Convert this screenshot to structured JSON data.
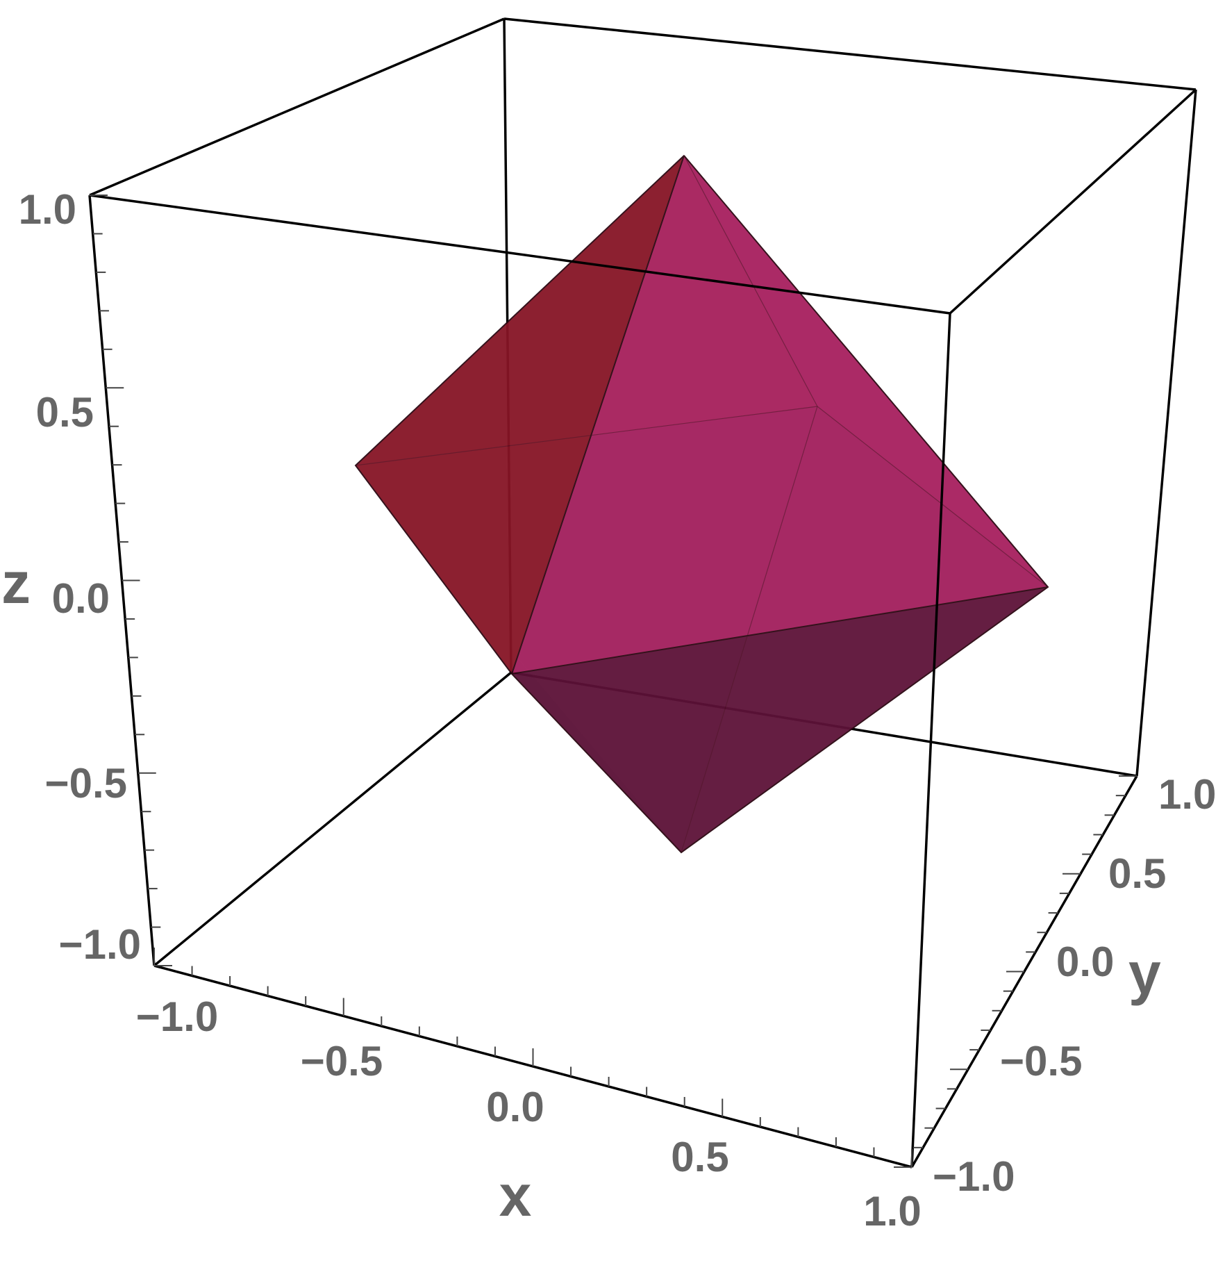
{
  "chart_data": {
    "type": "3d-polyhedron",
    "shape": "octahedron",
    "vertices": [
      [
        1,
        0,
        0
      ],
      [
        -1,
        0,
        0
      ],
      [
        0,
        1,
        0
      ],
      [
        0,
        -1,
        0
      ],
      [
        0,
        0,
        1
      ],
      [
        0,
        0,
        -1
      ]
    ],
    "axes": {
      "x": {
        "label": "x",
        "range": [
          -1.0,
          1.0
        ],
        "ticks": [
          "−1.0",
          "−0.5",
          "0.0",
          "0.5",
          "1.0"
        ]
      },
      "y": {
        "label": "y",
        "range": [
          -1.0,
          1.0
        ],
        "ticks": [
          "−1.0",
          "−0.5",
          "0.0",
          "0.5",
          "1.0"
        ]
      },
      "z": {
        "label": "z",
        "range": [
          -1.0,
          1.0
        ],
        "ticks": [
          "−1.0",
          "−0.5",
          "0.0",
          "0.5",
          "1.0"
        ]
      }
    },
    "box": true,
    "grid": false,
    "colors": {
      "face_top_left": "#861525",
      "face_top_front": "#a82060",
      "face_top_right": "#a21e58",
      "face_bottom": "#5f1238",
      "edge": "#000000",
      "tick_label": "#666666",
      "axis_title": "#666666"
    }
  }
}
